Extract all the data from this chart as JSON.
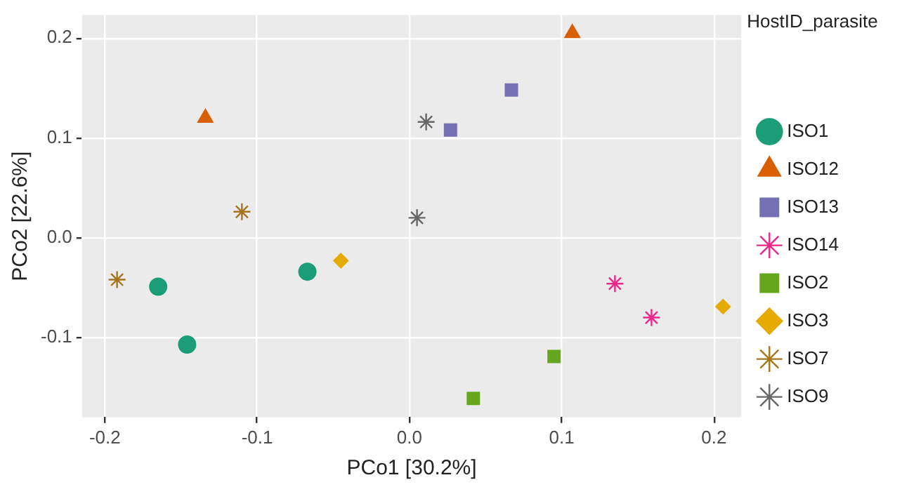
{
  "chart_data": {
    "type": "scatter",
    "xlabel": "PCo1 [30.2%]",
    "ylabel": "PCo2 [22.6%]",
    "legend_title": "HostID_parasite",
    "legend": "right",
    "grid": true,
    "xlim": [
      -0.215,
      0.218
    ],
    "xticks": [
      {
        "value": -0.2,
        "label": "-0.2"
      },
      {
        "value": -0.1,
        "label": "-0.1"
      },
      {
        "value": 0,
        "label": "0.0"
      },
      {
        "value": 0.1,
        "label": "0.1"
      },
      {
        "value": 0.2,
        "label": "0.2"
      }
    ],
    "ylim": [
      -0.18,
      0.223
    ],
    "yticks": [
      {
        "value": -0.1,
        "label": "-0.1"
      },
      {
        "value": 0,
        "label": "0.0"
      },
      {
        "value": 0.1,
        "label": "0.1"
      },
      {
        "value": 0.2,
        "label": "0.2"
      }
    ],
    "series": [
      {
        "name": "ISO1",
        "color": "#1b9e77",
        "marker": "circle",
        "x": [
          -0.165,
          -0.146,
          -0.067
        ],
        "values": [
          -0.049,
          -0.107,
          -0.034
        ]
      },
      {
        "name": "ISO12",
        "color": "#d95f02",
        "marker": "triangle",
        "x": [
          -0.134,
          0.107
        ],
        "values": [
          0.12,
          0.205
        ]
      },
      {
        "name": "ISO13",
        "color": "#7570b3",
        "marker": "square",
        "x": [
          0.067,
          0.027
        ],
        "values": [
          0.148,
          0.108
        ]
      },
      {
        "name": "ISO14",
        "color": "#e7298a",
        "marker": "cross",
        "x": [
          0.135,
          0.159
        ],
        "values": [
          -0.046,
          -0.08
        ]
      },
      {
        "name": "ISO2",
        "color": "#66a61e",
        "marker": "square",
        "x": [
          0.095,
          0.042
        ],
        "values": [
          -0.119,
          -0.161
        ]
      },
      {
        "name": "ISO3",
        "color": "#e6ab02",
        "marker": "diamond",
        "x": [
          -0.045,
          0.206
        ],
        "values": [
          -0.023,
          -0.069
        ]
      },
      {
        "name": "ISO7",
        "color": "#a6761d",
        "marker": "cross",
        "x": [
          -0.192,
          -0.11
        ],
        "values": [
          -0.042,
          0.026
        ]
      },
      {
        "name": "ISO9",
        "color": "#666666",
        "marker": "cross",
        "x": [
          0.011,
          0.005
        ],
        "values": [
          0.116,
          0.02
        ]
      }
    ]
  }
}
